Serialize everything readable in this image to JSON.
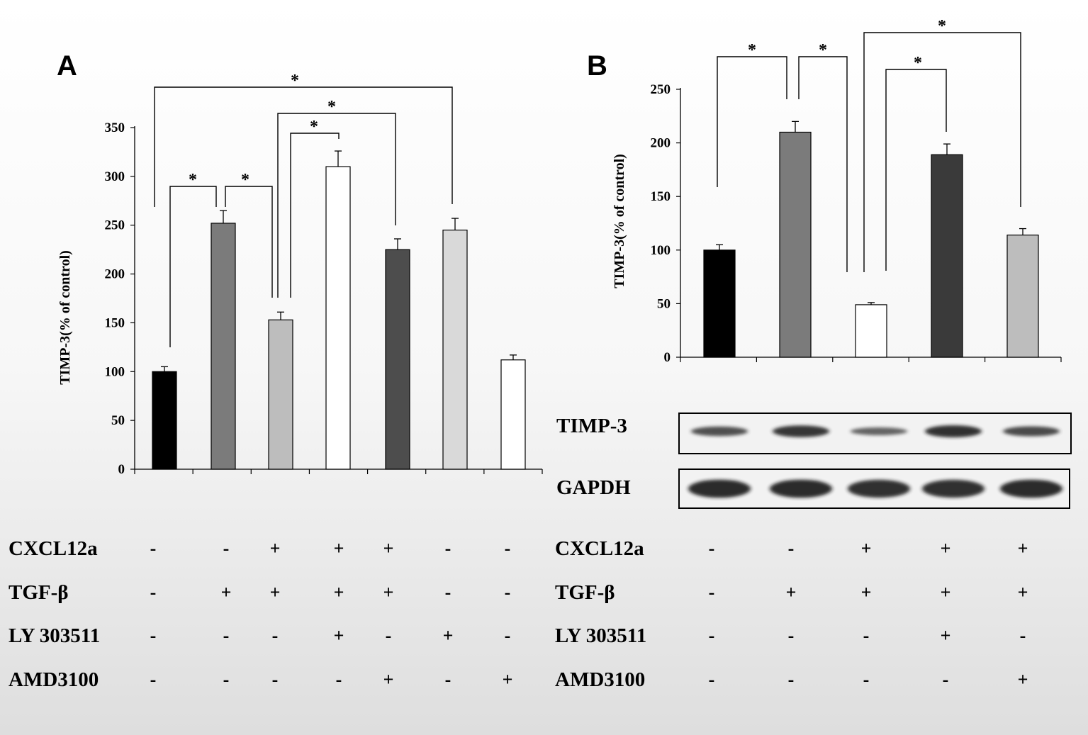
{
  "chart_data": [
    {
      "panel": "A",
      "type": "bar",
      "ylabel": "TIMP-3(% of control)",
      "ylim": [
        0,
        350
      ],
      "yticks": [
        0,
        50,
        100,
        150,
        200,
        250,
        300,
        350
      ],
      "values": [
        100,
        252,
        153,
        310,
        225,
        245,
        112
      ],
      "errors": [
        5,
        13,
        8,
        16,
        11,
        12,
        5
      ],
      "colors": [
        "#000000",
        "#7b7b7b",
        "#bdbdbd",
        "#ffffff",
        "#4d4d4d",
        "#d9d9d9",
        "#ffffff"
      ],
      "significance": [
        {
          "from": 1,
          "to": 2,
          "label": "*"
        },
        {
          "from": 2,
          "to": 3,
          "label": "*"
        },
        {
          "from": 3,
          "to": 4,
          "label": "*"
        },
        {
          "from": 3,
          "to": 5,
          "label": "*"
        },
        {
          "from": 1,
          "to": 6,
          "label": "*"
        }
      ],
      "treatments": [
        {
          "name": "CXCL12a",
          "signs": [
            "-",
            "-",
            "+",
            "+",
            "+",
            "-",
            "-"
          ]
        },
        {
          "name": "TGF-β",
          "signs": [
            "-",
            "+",
            "+",
            "+",
            "+",
            "-",
            "-"
          ]
        },
        {
          "name": "LY 303511",
          "signs": [
            "-",
            "-",
            "-",
            "+",
            "-",
            "+",
            "-"
          ]
        },
        {
          "name": "AMD3100",
          "signs": [
            "-",
            "-",
            "-",
            "-",
            "+",
            "-",
            "+"
          ]
        }
      ]
    },
    {
      "panel": "B",
      "type": "bar",
      "ylabel": "TIMP-3(% of control)",
      "ylim": [
        0,
        250
      ],
      "yticks": [
        0,
        50,
        100,
        150,
        200,
        250
      ],
      "values": [
        100,
        210,
        49,
        189,
        114
      ],
      "errors": [
        5,
        10,
        2,
        10,
        6
      ],
      "colors": [
        "#000000",
        "#7b7b7b",
        "#ffffff",
        "#3a3a3a",
        "#bdbdbd"
      ],
      "significance": [
        {
          "from": 1,
          "to": 2,
          "label": "*"
        },
        {
          "from": 2,
          "to": 3,
          "label": "*"
        },
        {
          "from": 3,
          "to": 4,
          "label": "*"
        },
        {
          "from": 3,
          "to": 5,
          "label": "*"
        }
      ],
      "treatments": [
        {
          "name": "CXCL12a",
          "signs": [
            "-",
            "-",
            "+",
            "+",
            "+"
          ]
        },
        {
          "name": "TGF-β",
          "signs": [
            "-",
            "+",
            "+",
            "+",
            "+"
          ]
        },
        {
          "name": "LY 303511",
          "signs": [
            "-",
            "-",
            "-",
            "+",
            "-"
          ]
        },
        {
          "name": "AMD3100",
          "signs": [
            "-",
            "-",
            "-",
            "-",
            "+"
          ]
        }
      ],
      "blot": {
        "rows": [
          {
            "name": "TIMP-3",
            "intensities": [
              0.55,
              0.85,
              0.3,
              0.9,
              0.6
            ]
          },
          {
            "name": "GAPDH",
            "intensities": [
              0.95,
              0.95,
              0.9,
              0.9,
              0.95
            ]
          }
        ]
      }
    }
  ]
}
